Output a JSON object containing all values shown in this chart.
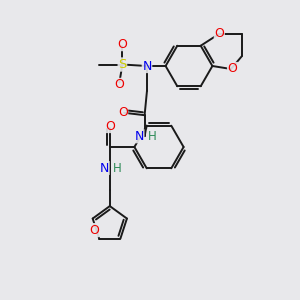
{
  "background_color": "#e8e8eb",
  "bond_color": "#1a1a1a",
  "atom_colors": {
    "N": "#0000ee",
    "O": "#ee0000",
    "S": "#cccc00",
    "H": "#2e8b57",
    "C": "#1a1a1a"
  },
  "figsize": [
    3.0,
    3.0
  ],
  "dpi": 100
}
